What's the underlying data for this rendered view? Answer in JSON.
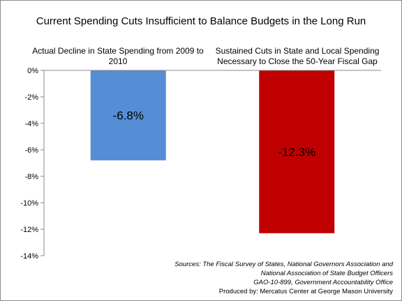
{
  "chart_data": {
    "type": "bar",
    "title": "Current Spending Cuts Insufficient to Balance Budgets in the Long Run",
    "categories": [
      "Actual Decline in State Spending from 2009 to 2010",
      "Sustained Cuts in State and Local Spending Necessary to Close the 50-Year Fiscal Gap"
    ],
    "values": [
      -6.8,
      -12.3
    ],
    "data_labels": [
      "-6.8%",
      "-12.3%"
    ],
    "colors": [
      "#558ed5",
      "#c00000"
    ],
    "ylim": [
      -14,
      0
    ],
    "yticks": [
      "0%",
      "-2%",
      "-4%",
      "-6%",
      "-8%",
      "-10%",
      "-12%",
      "-14%"
    ],
    "grid": false,
    "legend": "none"
  },
  "sources": {
    "line1": "Sources: The Fiscal Survey of States, National Governors Association and",
    "line2": "National Association of State Budget Officers",
    "line3": "GAO-10-899, Government Accountability Office",
    "line4": "Produced by: Mercatus Center at George Mason University"
  }
}
